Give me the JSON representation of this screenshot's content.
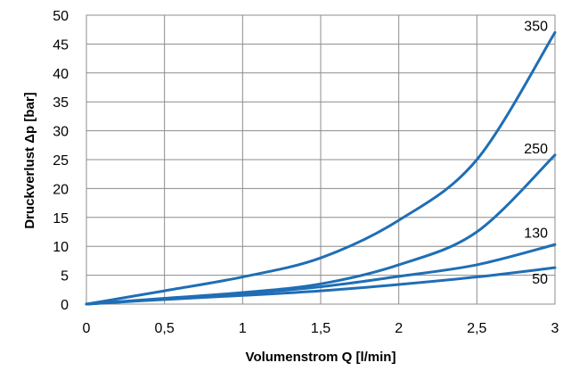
{
  "chart_data": {
    "type": "line",
    "xlabel": "Volumenstrom Q [l/min]",
    "ylabel": "Druckverlust Δp [bar]",
    "xlim": [
      0,
      3
    ],
    "ylim": [
      0,
      50
    ],
    "x_ticks": [
      "0",
      "0,5",
      "1",
      "1,5",
      "2",
      "2,5",
      "3"
    ],
    "y_ticks": [
      "0",
      "5",
      "10",
      "15",
      "20",
      "25",
      "30",
      "35",
      "40",
      "45",
      "50"
    ],
    "grid": true,
    "legend": "none",
    "line_color": "#1f6eb5",
    "series": [
      {
        "name": "350",
        "x": [
          0,
          0.5,
          1,
          1.5,
          2,
          2.5,
          3
        ],
        "y": [
          0,
          2.3,
          4.7,
          8.0,
          14.5,
          25.0,
          47.0
        ]
      },
      {
        "name": "250",
        "x": [
          0,
          0.5,
          1,
          1.5,
          2,
          2.5,
          3
        ],
        "y": [
          0,
          1.0,
          2.0,
          3.5,
          6.8,
          12.5,
          25.8
        ]
      },
      {
        "name": "130",
        "x": [
          0,
          0.5,
          1,
          1.5,
          2,
          2.5,
          3
        ],
        "y": [
          0,
          0.9,
          1.8,
          3.0,
          4.8,
          6.8,
          10.3
        ]
      },
      {
        "name": "50",
        "x": [
          0,
          0.5,
          1,
          1.5,
          2,
          2.5,
          3
        ],
        "y": [
          0,
          0.8,
          1.5,
          2.3,
          3.4,
          4.7,
          6.3
        ]
      }
    ]
  }
}
